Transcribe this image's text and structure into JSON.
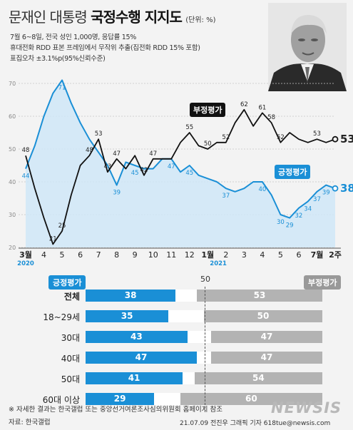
{
  "header": {
    "title_light": "문재인 대통령",
    "title_bold": "국정수행 지지도",
    "unit": "(단위: %)",
    "meta": [
      "7월 6~8일, 전국 성인 1,000명, 응답률 15%",
      "휴대전화 RDD 표본 프레임에서 무작위 추출(집전화 RDD 15% 포함)",
      "표집오차 ±3.1%p(95%신뢰수준)"
    ]
  },
  "labels": {
    "positive": "긍정평가",
    "negative": "부정평가",
    "midline": "50"
  },
  "colors": {
    "positive": "#1a8fd6",
    "negative": "#111111",
    "neg_bar": "#b3b3b3",
    "area": "#cfe6f7"
  },
  "chart_data": [
    {
      "type": "line",
      "ylim": [
        20,
        70
      ],
      "y_ticks": [
        "70",
        "60",
        "50",
        "40",
        "30",
        "20"
      ],
      "x_ticks": [
        "3월",
        "4",
        "5",
        "6",
        "7",
        "8",
        "9",
        "10",
        "11",
        "12",
        "1월",
        "2",
        "3",
        "4",
        "5",
        "6",
        "7월",
        "2주"
      ],
      "year_labels": [
        "2020",
        "2021"
      ],
      "series": [
        {
          "name": "긍정평가",
          "x": [
            0,
            0.5,
            1,
            1.5,
            2,
            2.5,
            3,
            3.5,
            4,
            4.5,
            5,
            5.5,
            6,
            6.5,
            7,
            7.5,
            8,
            8.5,
            9,
            9.5,
            10,
            10.5,
            11,
            11.5,
            12,
            12.5,
            13,
            13.5,
            14,
            14.5,
            15,
            15.5,
            16,
            16.5,
            17
          ],
          "values": [
            44,
            51,
            60,
            67,
            71,
            64,
            58,
            53,
            49,
            45,
            39,
            46,
            45,
            44,
            44,
            47,
            47,
            43,
            45,
            42,
            41,
            40,
            38,
            37,
            38,
            40,
            40,
            36,
            30,
            29,
            32,
            34,
            37,
            39,
            38
          ],
          "labels": {
            "0": "44",
            "4": "71",
            "10": "39",
            "12": "45",
            "16": "47",
            "18": "45",
            "22": "37",
            "26": "40",
            "28": "30",
            "29": "29",
            "30": "32",
            "31": "34",
            "32": "37",
            "33": "39",
            "34": "38"
          }
        },
        {
          "name": "부정평가",
          "x": [
            0,
            0.5,
            1,
            1.5,
            2,
            2.5,
            3,
            3.5,
            4,
            4.5,
            5,
            5.5,
            6,
            6.5,
            7,
            7.5,
            8,
            8.5,
            9,
            9.5,
            10,
            10.5,
            11,
            11.5,
            12,
            12.5,
            13,
            13.5,
            14,
            14.5,
            15,
            15.5,
            16,
            16.5,
            17
          ],
          "values": [
            48,
            38,
            29,
            21,
            25,
            36,
            45,
            48,
            53,
            43,
            47,
            44,
            48,
            42,
            47,
            47,
            47,
            52,
            55,
            51,
            50,
            52,
            52,
            58,
            62,
            57,
            61,
            58,
            52,
            55,
            53,
            52,
            53,
            52,
            53
          ],
          "labels": {
            "0": "48",
            "3": "21",
            "4": "25",
            "7": "48",
            "8": "53",
            "9": "43",
            "10": "47",
            "13": "42",
            "14": "47",
            "18": "55",
            "20": "50",
            "22": "52",
            "24": "62",
            "26": "61",
            "27": "58",
            "28": "52",
            "32": "53",
            "34": "53"
          }
        }
      ]
    },
    {
      "type": "bar",
      "categories": [
        "전체",
        "18~29세",
        "30대",
        "40대",
        "50대",
        "60대 이상"
      ],
      "series": [
        {
          "name": "긍정평가",
          "values": [
            38,
            35,
            43,
            47,
            41,
            29
          ]
        },
        {
          "name": "부정평가",
          "values": [
            53,
            50,
            47,
            47,
            54,
            60
          ]
        }
      ]
    }
  ],
  "footer": {
    "note": "※ 자세한 결과는 한국갤럽 또는 중앙선거여론조사심의위원회 홈페이지 참조",
    "source": "자료: 한국갤럽",
    "credit": "21.07.09 전진우 그래픽 기자 618tue@newsis.com",
    "logo": "NEWSIS"
  }
}
